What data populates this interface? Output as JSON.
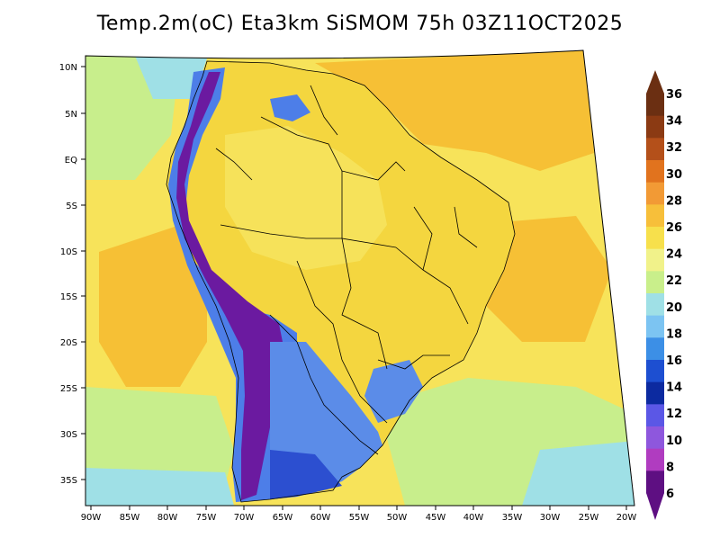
{
  "title": "Temp.2m(oC) Eta3km SiSMOM 75h 03Z11OCT2025",
  "lat_labels": [
    "10N",
    "5N",
    "EQ",
    "5S",
    "10S",
    "15S",
    "20S",
    "25S",
    "30S",
    "35S"
  ],
  "lon_labels": [
    "90W",
    "85W",
    "80W",
    "75W",
    "70W",
    "65W",
    "60W",
    "55W",
    "50W",
    "45W",
    "40W",
    "35W",
    "30W",
    "25W",
    "20W"
  ],
  "colorbar": {
    "labels": [
      "36",
      "34",
      "32",
      "30",
      "28",
      "26",
      "24",
      "22",
      "20",
      "18",
      "16",
      "14",
      "12",
      "10",
      "8",
      "6"
    ],
    "colors": [
      "#6b2f12",
      "#8b3a13",
      "#b4501a",
      "#e1731e",
      "#f29a35",
      "#f7bf3a",
      "#f7e04c",
      "#f1f28a",
      "#c9ef8b",
      "#9fe0e6",
      "#7cc4f2",
      "#3c8fe6",
      "#1d4fd1",
      "#0c2aa0",
      "#5b57e6",
      "#8e57dd",
      "#b03cc0",
      "#5e0f82"
    ],
    "top_color": "#6b2f12",
    "bottom_color": "#5e0f82"
  },
  "palette": {
    "ocean_warm": "#f6c035",
    "ocean_mid": "#f7e35a",
    "ocean_cool": "#c8ee8c",
    "ocean_cold": "#9fe0e6",
    "land_base": "#f4d63f",
    "amazon": "#f6e25a",
    "andes": "#6b1aa0",
    "andes_edge": "#4d7ee8",
    "south_cold": "#5b8ce8",
    "patagonia": "#2c4fd0",
    "border": "#000000"
  }
}
